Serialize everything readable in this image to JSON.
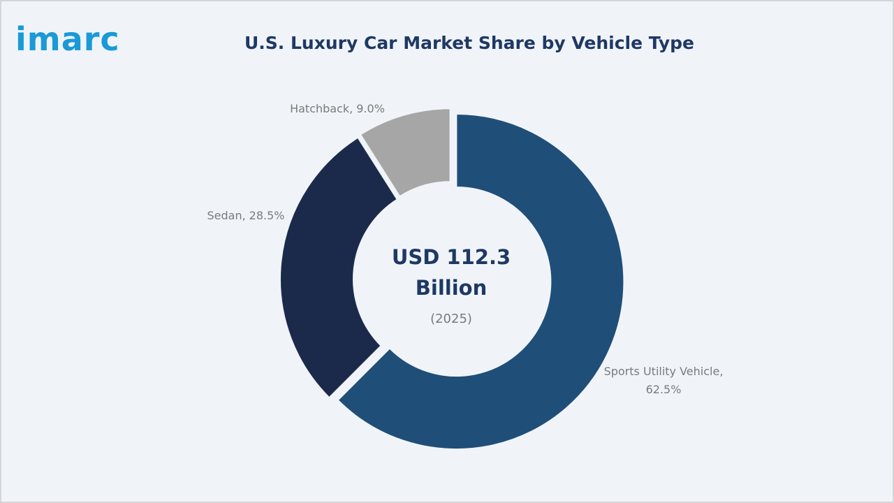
{
  "logo": "imarc",
  "chart_data": {
    "type": "donut",
    "title": "U.S. Luxury Car Market Share by Vehicle Type",
    "categories": [
      "Sports Utility Vehicle,",
      "Sedan,",
      "Hatchback,"
    ],
    "values": [
      62.5,
      28.5,
      9.0
    ],
    "value_labels": [
      "62.5%",
      "28.5%",
      "9.0%"
    ],
    "colors": [
      "#1f4e79",
      "#1b2a4b",
      "#a6a6a6"
    ],
    "center_text": [
      "USD 112.3",
      "Billion"
    ],
    "center_subtext": "(2025)"
  }
}
